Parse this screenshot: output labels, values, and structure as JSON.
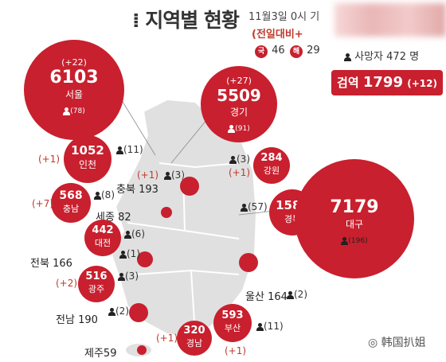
{
  "header": {
    "title": "지역별 현황",
    "date": "11월3일 0시 기",
    "previous_day": "(전일대비+",
    "domestic_badge": "국",
    "domestic_value": "46",
    "overseas_badge": "해",
    "overseas_value": "29",
    "deaths": "사망자 472 명",
    "exam_label": "검역",
    "exam_value": "1799",
    "exam_change": "(+12)"
  },
  "regions": [
    {
      "name": "서울",
      "total": "6103",
      "change": "(+22)",
      "deaths": "(78)"
    },
    {
      "name": "경기",
      "total": "5509",
      "change": "(+27)",
      "deaths": "(91)"
    },
    {
      "name": "인천",
      "total": "1052",
      "change": "(+1)",
      "deaths": "(11)"
    },
    {
      "name": "강원",
      "total": "284",
      "change": "(+1)",
      "deaths": "(3)"
    },
    {
      "name": "충북",
      "total": "193",
      "change": "(+1)",
      "deaths": "(3)"
    },
    {
      "name": "충남",
      "total": "568",
      "change": "(+7)",
      "deaths": "(8)"
    },
    {
      "name": "세종",
      "total": "82"
    },
    {
      "name": "대전",
      "total": "442",
      "deaths": "(6)"
    },
    {
      "name": "경북",
      "total": "1588",
      "deaths": "(57)"
    },
    {
      "name": "대구",
      "total": "7179",
      "deaths": "(196)"
    },
    {
      "name": "전북",
      "total": "166",
      "deaths": "(1)"
    },
    {
      "name": "광주",
      "total": "516",
      "change": "(+2)",
      "deaths": "(3)"
    },
    {
      "name": "울산",
      "total": "164",
      "deaths": "(2)"
    },
    {
      "name": "전남",
      "total": "190",
      "deaths": "(2)"
    },
    {
      "name": "부산",
      "total": "593",
      "change": "(+1)",
      "deaths": "(11)"
    },
    {
      "name": "경남",
      "total": "320",
      "change": "(+1)"
    },
    {
      "name": "제주",
      "total": "59"
    }
  ],
  "watermark": "韩国扒姐",
  "colors": {
    "accent": "#c8202e",
    "map": "#dcdcdc"
  }
}
